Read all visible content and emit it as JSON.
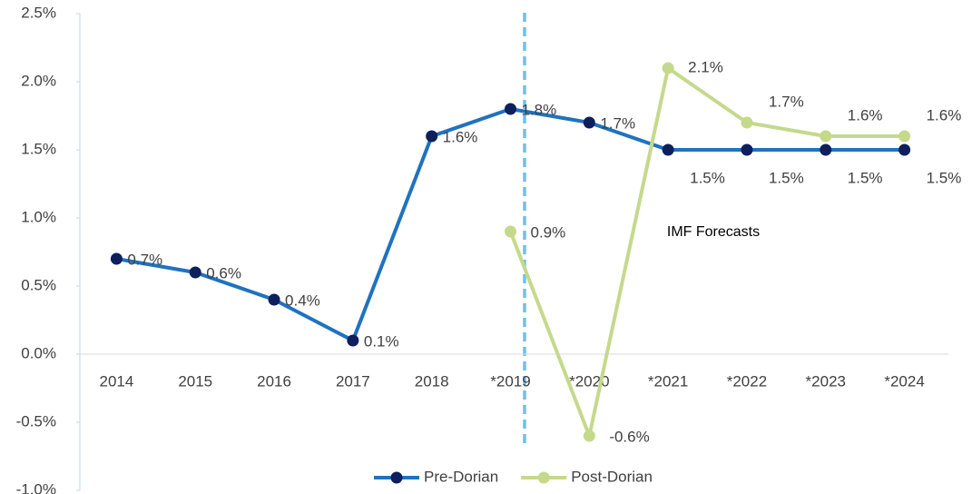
{
  "chart_data": {
    "type": "line",
    "categories": [
      "2014",
      "2015",
      "2016",
      "2017",
      "2018",
      "*2019",
      "*2020",
      "*2021",
      "*2022",
      "*2023",
      "*2024"
    ],
    "series": [
      {
        "name": "Pre-Dorian",
        "color": "#1f72c0",
        "marker_color": "#0d1f5c",
        "values": [
          0.7,
          0.6,
          0.4,
          0.1,
          1.6,
          1.8,
          1.7,
          1.5,
          1.5,
          1.5,
          1.5
        ],
        "value_labels": [
          "0.7%",
          "0.6%",
          "0.4%",
          "0.1%",
          "1.6%",
          "1.8%",
          "1.7%",
          "1.5%",
          "1.5%",
          "1.5%",
          "1.5%"
        ]
      },
      {
        "name": "Post-Dorian",
        "color": "#c5d98c",
        "marker_color": "#c5d98c",
        "values": [
          null,
          null,
          null,
          null,
          null,
          0.9,
          -0.6,
          2.1,
          1.7,
          1.6,
          1.6
        ],
        "value_labels": [
          null,
          null,
          null,
          null,
          null,
          "0.9%",
          "-0.6%",
          "2.1%",
          "1.7%",
          "1.6%",
          "1.6%"
        ]
      }
    ],
    "annotation": "IMF Forecasts",
    "ylim": [
      -1.0,
      2.5
    ],
    "yticks": [
      {
        "value": -1.0,
        "label": "-1.0%"
      },
      {
        "value": -0.5,
        "label": "-0.5%"
      },
      {
        "value": 0,
        "label": "0.0%"
      },
      {
        "value": 0.5,
        "label": "0.5%"
      },
      {
        "value": 1.0,
        "label": "1.0%"
      },
      {
        "value": 1.5,
        "label": "1.5%"
      },
      {
        "value": 2.0,
        "label": "2.0%"
      },
      {
        "value": 2.5,
        "label": "2.5%"
      }
    ],
    "legend": "bottom"
  }
}
